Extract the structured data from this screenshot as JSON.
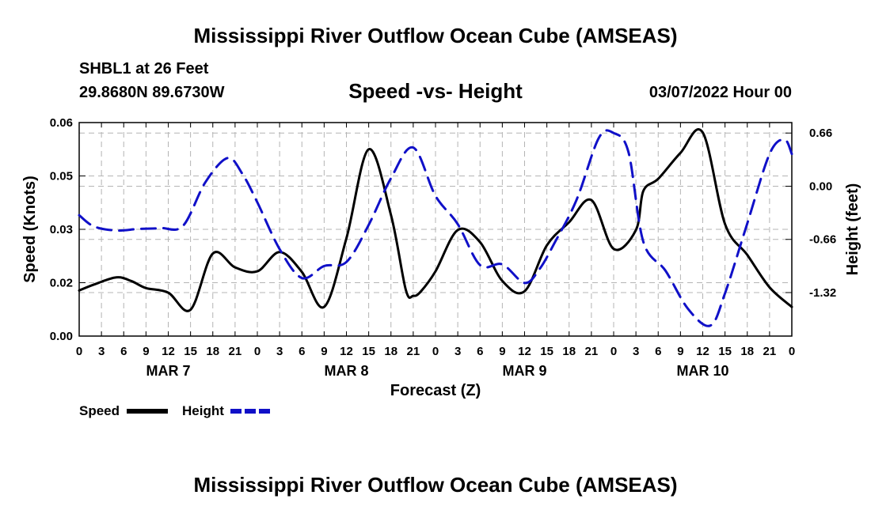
{
  "header": {
    "title": "Mississippi River Outflow Ocean Cube (AMSEAS)",
    "station": "SHBL1 at 26 Feet",
    "coords": "29.8680N  89.6730W",
    "subtitle": "Speed -vs- Height",
    "datetime": "03/07/2022 Hour 00"
  },
  "footer": {
    "title": "Mississippi River Outflow Ocean Cube (AMSEAS)"
  },
  "chart_data": {
    "type": "line",
    "title": "Speed -vs- Height",
    "xlabel": "Forecast (Z)",
    "ylabel": "Speed (Knots)",
    "y2label": "Height (feet)",
    "xlim": [
      0,
      96
    ],
    "ylim": [
      0,
      0.06
    ],
    "y2lim": [
      -1.86,
      0.79
    ],
    "x_tick_labels": [
      "0",
      "3",
      "6",
      "9",
      "12",
      "15",
      "18",
      "21",
      "0",
      "3",
      "6",
      "9",
      "12",
      "15",
      "18",
      "21",
      "0",
      "3",
      "6",
      "9",
      "12",
      "15",
      "18",
      "21",
      "0",
      "3",
      "6",
      "9",
      "12",
      "15",
      "18",
      "21",
      "0"
    ],
    "day_labels": [
      {
        "label": "MAR 7",
        "x": 12
      },
      {
        "label": "MAR 8",
        "x": 36
      },
      {
        "label": "MAR 9",
        "x": 60
      },
      {
        "label": "MAR 10",
        "x": 84
      }
    ],
    "y_ticks": [
      0,
      0.015,
      0.03,
      0.045,
      0.06
    ],
    "y_tick_labels": [
      "0.00",
      "0.02",
      "0.03",
      "0.05",
      "0.06"
    ],
    "y2_ticks": [
      0.66,
      0.0,
      -0.66,
      -1.32
    ],
    "y2_tick_labels": [
      "0.66",
      "0.00",
      "-0.66",
      "-1.32"
    ],
    "legend": [
      {
        "name": "Speed",
        "color": "#000000",
        "dash": "solid"
      },
      {
        "name": "Height",
        "color": "#1010c8",
        "dash": "dashed"
      }
    ],
    "series": [
      {
        "name": "Speed",
        "axis": "left",
        "color": "#000000",
        "x": [
          0,
          2,
          5,
          7,
          9,
          12,
          15,
          18,
          21,
          24,
          27,
          30,
          33,
          36,
          39,
          42,
          44,
          45,
          46,
          48,
          51,
          54,
          57,
          60,
          63,
          66,
          69,
          72,
          75,
          76,
          78,
          81,
          84,
          87,
          90,
          93,
          96
        ],
        "values": [
          0.0128,
          0.0145,
          0.0165,
          0.0155,
          0.0135,
          0.0122,
          0.0074,
          0.0232,
          0.0193,
          0.0182,
          0.0236,
          0.018,
          0.0082,
          0.0275,
          0.0525,
          0.034,
          0.013,
          0.0113,
          0.0125,
          0.0182,
          0.0298,
          0.0264,
          0.0155,
          0.0126,
          0.0255,
          0.032,
          0.0382,
          0.0245,
          0.0298,
          0.0408,
          0.0442,
          0.0515,
          0.0572,
          0.0315,
          0.0228,
          0.0137,
          0.0082
        ]
      },
      {
        "name": "Height",
        "axis": "right",
        "color": "#1010c8",
        "x": [
          0,
          2,
          5,
          8,
          11,
          14,
          17,
          20,
          22,
          24,
          27,
          30,
          33,
          36,
          39,
          42,
          45,
          48,
          51,
          54,
          57,
          60,
          62,
          64,
          67,
          70,
          72,
          74,
          76,
          79,
          82,
          85,
          87,
          90,
          93,
          95,
          96
        ],
        "values": [
          -0.36,
          -0.5,
          -0.55,
          -0.53,
          -0.52,
          -0.49,
          0.05,
          0.35,
          0.15,
          -0.2,
          -0.78,
          -1.14,
          -0.99,
          -0.94,
          -0.48,
          0.1,
          0.48,
          -0.12,
          -0.47,
          -0.98,
          -0.97,
          -1.2,
          -1.03,
          -0.71,
          -0.17,
          0.6,
          0.66,
          0.42,
          -0.69,
          -1.05,
          -1.52,
          -1.73,
          -1.33,
          -0.46,
          0.4,
          0.58,
          0.4
        ]
      }
    ]
  }
}
